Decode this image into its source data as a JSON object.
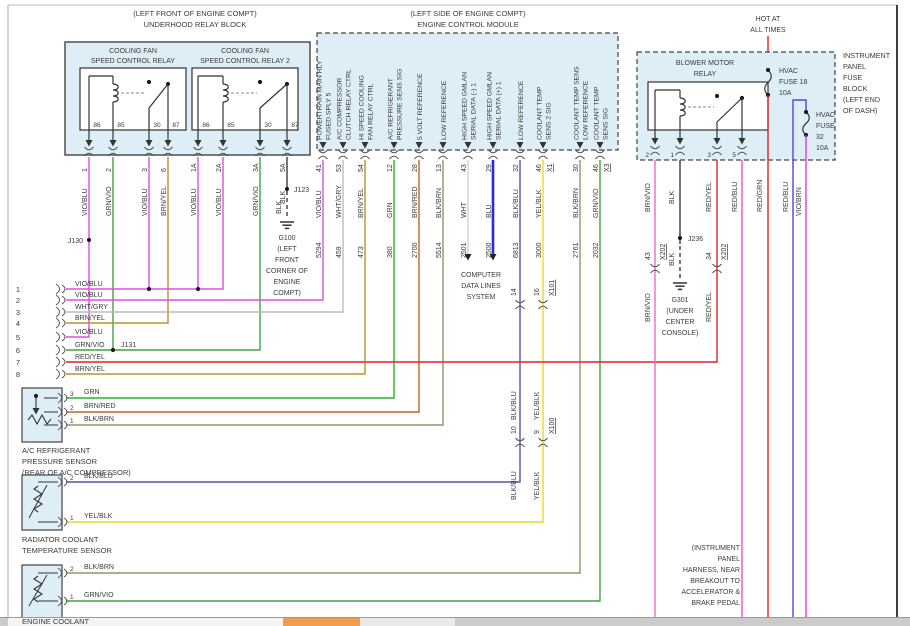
{
  "colors": {
    "VIO/BLU": "#dd4fdd",
    "GRN/VIO": "#44a044",
    "BRN/YEL": "#b5952a",
    "BLK": "#3c3c3c",
    "WHT/GRY": "#bcbcbc",
    "GRN": "#28b428",
    "BRN/RED": "#c95f28",
    "BLK/BRN": "#98906c",
    "WHT": "#d2d2d2",
    "BLU": "#2828dc",
    "BLK/BLU": "#5555a0",
    "YEL/BLK": "#e6dc28",
    "RED/YEL": "#e32222",
    "BRN/VIO": "#ea6cc8",
    "RED/BLU": "#f04fd0",
    "RED/BLU_2": "#4848e0",
    "RED/GRN": "#dc2424",
    "VIO/BRN": "#e23ce2",
    "box_fill": "#ddeef7",
    "scroll_thumb": "#f09d4e"
  },
  "underhood": {
    "title": [
      "(LEFT FRONT OF ENGINE COMPT)",
      "UNDERHOOD RELAY BLOCK"
    ],
    "relays": [
      {
        "name": [
          "COOLING FAN",
          "SPEED CONTROL RELAY"
        ],
        "terminals": [
          "86",
          "85",
          "30",
          "87"
        ]
      },
      {
        "name": [
          "COOLING FAN",
          "SPEED CONTROL RELAY 2"
        ],
        "terminals": [
          "86",
          "85",
          "30",
          "87"
        ]
      }
    ],
    "pins": [
      {
        "pin": "1",
        "wire": "VIO/BLU"
      },
      {
        "pin": "2",
        "wire": "GRN/VIO"
      },
      {
        "pin": "3",
        "wire": "VIO/BLU"
      },
      {
        "pin": "6",
        "wire": "BRN/YEL"
      },
      {
        "pin": "1A",
        "wire": "VIO/BLU"
      },
      {
        "pin": "2A",
        "wire": "VIO/BLU"
      },
      {
        "pin": "3A",
        "wire": "GRN/VIO"
      },
      {
        "pin": "5A",
        "wire": "BLK"
      }
    ],
    "ground": {
      "wire": "BLK",
      "junction": "J123",
      "lines": [
        "G100",
        "(LEFT",
        "FRONT",
        "CORNER OF",
        "ENGINE",
        "COMPT)"
      ]
    }
  },
  "ecm": {
    "title": [
      "(LEFT SIDE OF ENGINE COMPT)",
      "ENGINE CONTROL MODULE"
    ],
    "pins": [
      {
        "pin": "41",
        "fn": [
          "POWERTRAIN MAIN RLY",
          "FUSED SPLY 5"
        ],
        "wire": "VIO/BLU",
        "circuit": "5294"
      },
      {
        "pin": "53",
        "fn": [
          "A/C COMPRESSOR",
          "CLUTCH RELAY CTRL"
        ],
        "wire": "WHT/GRY",
        "circuit": "459"
      },
      {
        "pin": "54",
        "fn": [
          "HI SPEED COOLING",
          "FAN RELAY CTRL"
        ],
        "wire": "BRN/YEL",
        "circuit": "473"
      },
      {
        "pin": "12",
        "fn": [
          "A/C REFRIGERANT",
          "PRESSURE SENS SIG"
        ],
        "wire": "GRN",
        "circuit": "380"
      },
      {
        "pin": "28",
        "fn": [
          "5 VOLT REFERENCE"
        ],
        "wire": "BRN/RED",
        "circuit": "2700"
      },
      {
        "pin": "13",
        "fn": [
          "LOW REFERENCE"
        ],
        "wire": "BLK/BRN",
        "circuit": "5514"
      },
      {
        "pin": "43",
        "fn": [
          "HIGH SPEED GMLAN",
          "SERIAL DATA (-) 1"
        ],
        "wire": "WHT",
        "circuit": "2501"
      },
      {
        "pin": "29",
        "fn": [
          "HIGH SPEED GMLAN",
          "SERIAL DATA (+) 1"
        ],
        "wire": "BLU",
        "circuit": "2500"
      },
      {
        "pin": "32",
        "fn": [
          "LOW REFERENCE"
        ],
        "wire": "BLK/BLU",
        "circuit": "6813"
      },
      {
        "pin": "46",
        "conn": "X1",
        "fn": [
          "COOLANT TEMP",
          "SENS 2 SIG"
        ],
        "wire": "YEL/BLK",
        "circuit": "3000"
      },
      {
        "pin": "30",
        "fn": [
          "COOLANT TEMP SENS",
          "LOW REFERENCE"
        ],
        "wire": "BLK/BRN",
        "circuit": "2761"
      },
      {
        "pin": "46",
        "conn": "X3",
        "fn": [
          "COOLANT TEMP",
          "SENS SIG"
        ],
        "wire": "GRN/VIO",
        "circuit": "2032"
      }
    ]
  },
  "left_connector": {
    "rows": [
      {
        "pin": "1",
        "wire": "VIO/BLU"
      },
      {
        "pin": "2",
        "wire": "VIO/BLU"
      },
      {
        "pin": "3",
        "wire": "WHT/GRY"
      },
      {
        "pin": "4",
        "wire": "BRN/YEL"
      },
      {
        "pin": "5",
        "wire": "VIO/BLU"
      },
      {
        "pin": "6",
        "wire": "GRN/VIO"
      },
      {
        "pin": "7",
        "wire": "RED/YEL"
      },
      {
        "pin": "8",
        "wire": "BRN/YEL"
      }
    ],
    "junctions": {
      "j130": "J130",
      "j131": "J131"
    }
  },
  "computer_data_lines": {
    "lines": [
      "COMPUTER",
      "DATA LINES",
      "SYSTEM"
    ]
  },
  "inline_connectors": {
    "x101": {
      "name": "X101",
      "pins": [
        "14",
        "16"
      ]
    },
    "x100": {
      "name": "X100",
      "pins": [
        "10",
        "9"
      ]
    },
    "x202": {
      "name": "X202",
      "pins": [
        "43",
        "34"
      ]
    },
    "mid_labels": [
      "BLK/BLU",
      "YEL/BLK"
    ]
  },
  "blower": {
    "hot": [
      "HOT AT",
      "ALL TIMES"
    ],
    "title": [
      "BLOWER MOTOR",
      "RELAY"
    ],
    "pins": [
      "2",
      "1",
      "3",
      "5"
    ],
    "fuse18": {
      "lines": [
        "HVAC",
        "FUSE 18",
        "10A"
      ]
    },
    "fuse32": {
      "lines": [
        "HVAC",
        "FUSE",
        "32",
        "10A"
      ]
    },
    "block_label": [
      "INSTRUMENT",
      "PANEL",
      "FUSE",
      "BLOCK",
      "(LEFT END",
      "OF DASH)"
    ],
    "wires": [
      {
        "label": "BRN/VIO"
      },
      {
        "label": "BLK"
      },
      {
        "label": "RED/YEL"
      },
      {
        "label": "RED/BLU"
      },
      {
        "label": "RED/GRN"
      },
      {
        "label": "RED/BLU"
      },
      {
        "label": "VIO/BRN"
      }
    ],
    "relabels": [
      "BRN/VIO",
      "RED/YEL"
    ],
    "below_junction_label": "BLK",
    "junction": "J236",
    "ground_lines": [
      "G301",
      "(UNDER",
      "CENTER",
      "CONSOLE)"
    ]
  },
  "harness_note": [
    "(INSTRUMENT",
    "PANEL",
    "HARNESS, NEAR",
    "BREAKOUT TO",
    "ACCELERATOR &",
    "BRAKE PEDAL"
  ],
  "sensors": [
    {
      "lines": [
        "A/C REFRIGERANT",
        "PRESSURE SENSOR",
        "(REAR OF A/C COMPRESSOR)"
      ],
      "pins": [
        {
          "pin": "3",
          "wire": "GRN"
        },
        {
          "pin": "2",
          "wire": "BRN/RED"
        },
        {
          "pin": "1",
          "wire": "BLK/BRN"
        }
      ]
    },
    {
      "lines": [
        "RADIATOR COOLANT",
        "TEMPERATURE SENSOR"
      ],
      "pins": [
        {
          "pin": "2",
          "wire": "BLK/BLU"
        },
        {
          "pin": "1",
          "wire": "YEL/BLK"
        }
      ]
    },
    {
      "lines": [
        "ENGINE COOLANT"
      ],
      "pins": [
        {
          "pin": "2",
          "wire": "BLK/BRN"
        },
        {
          "pin": "1",
          "wire": "GRN/VIO"
        }
      ]
    }
  ]
}
